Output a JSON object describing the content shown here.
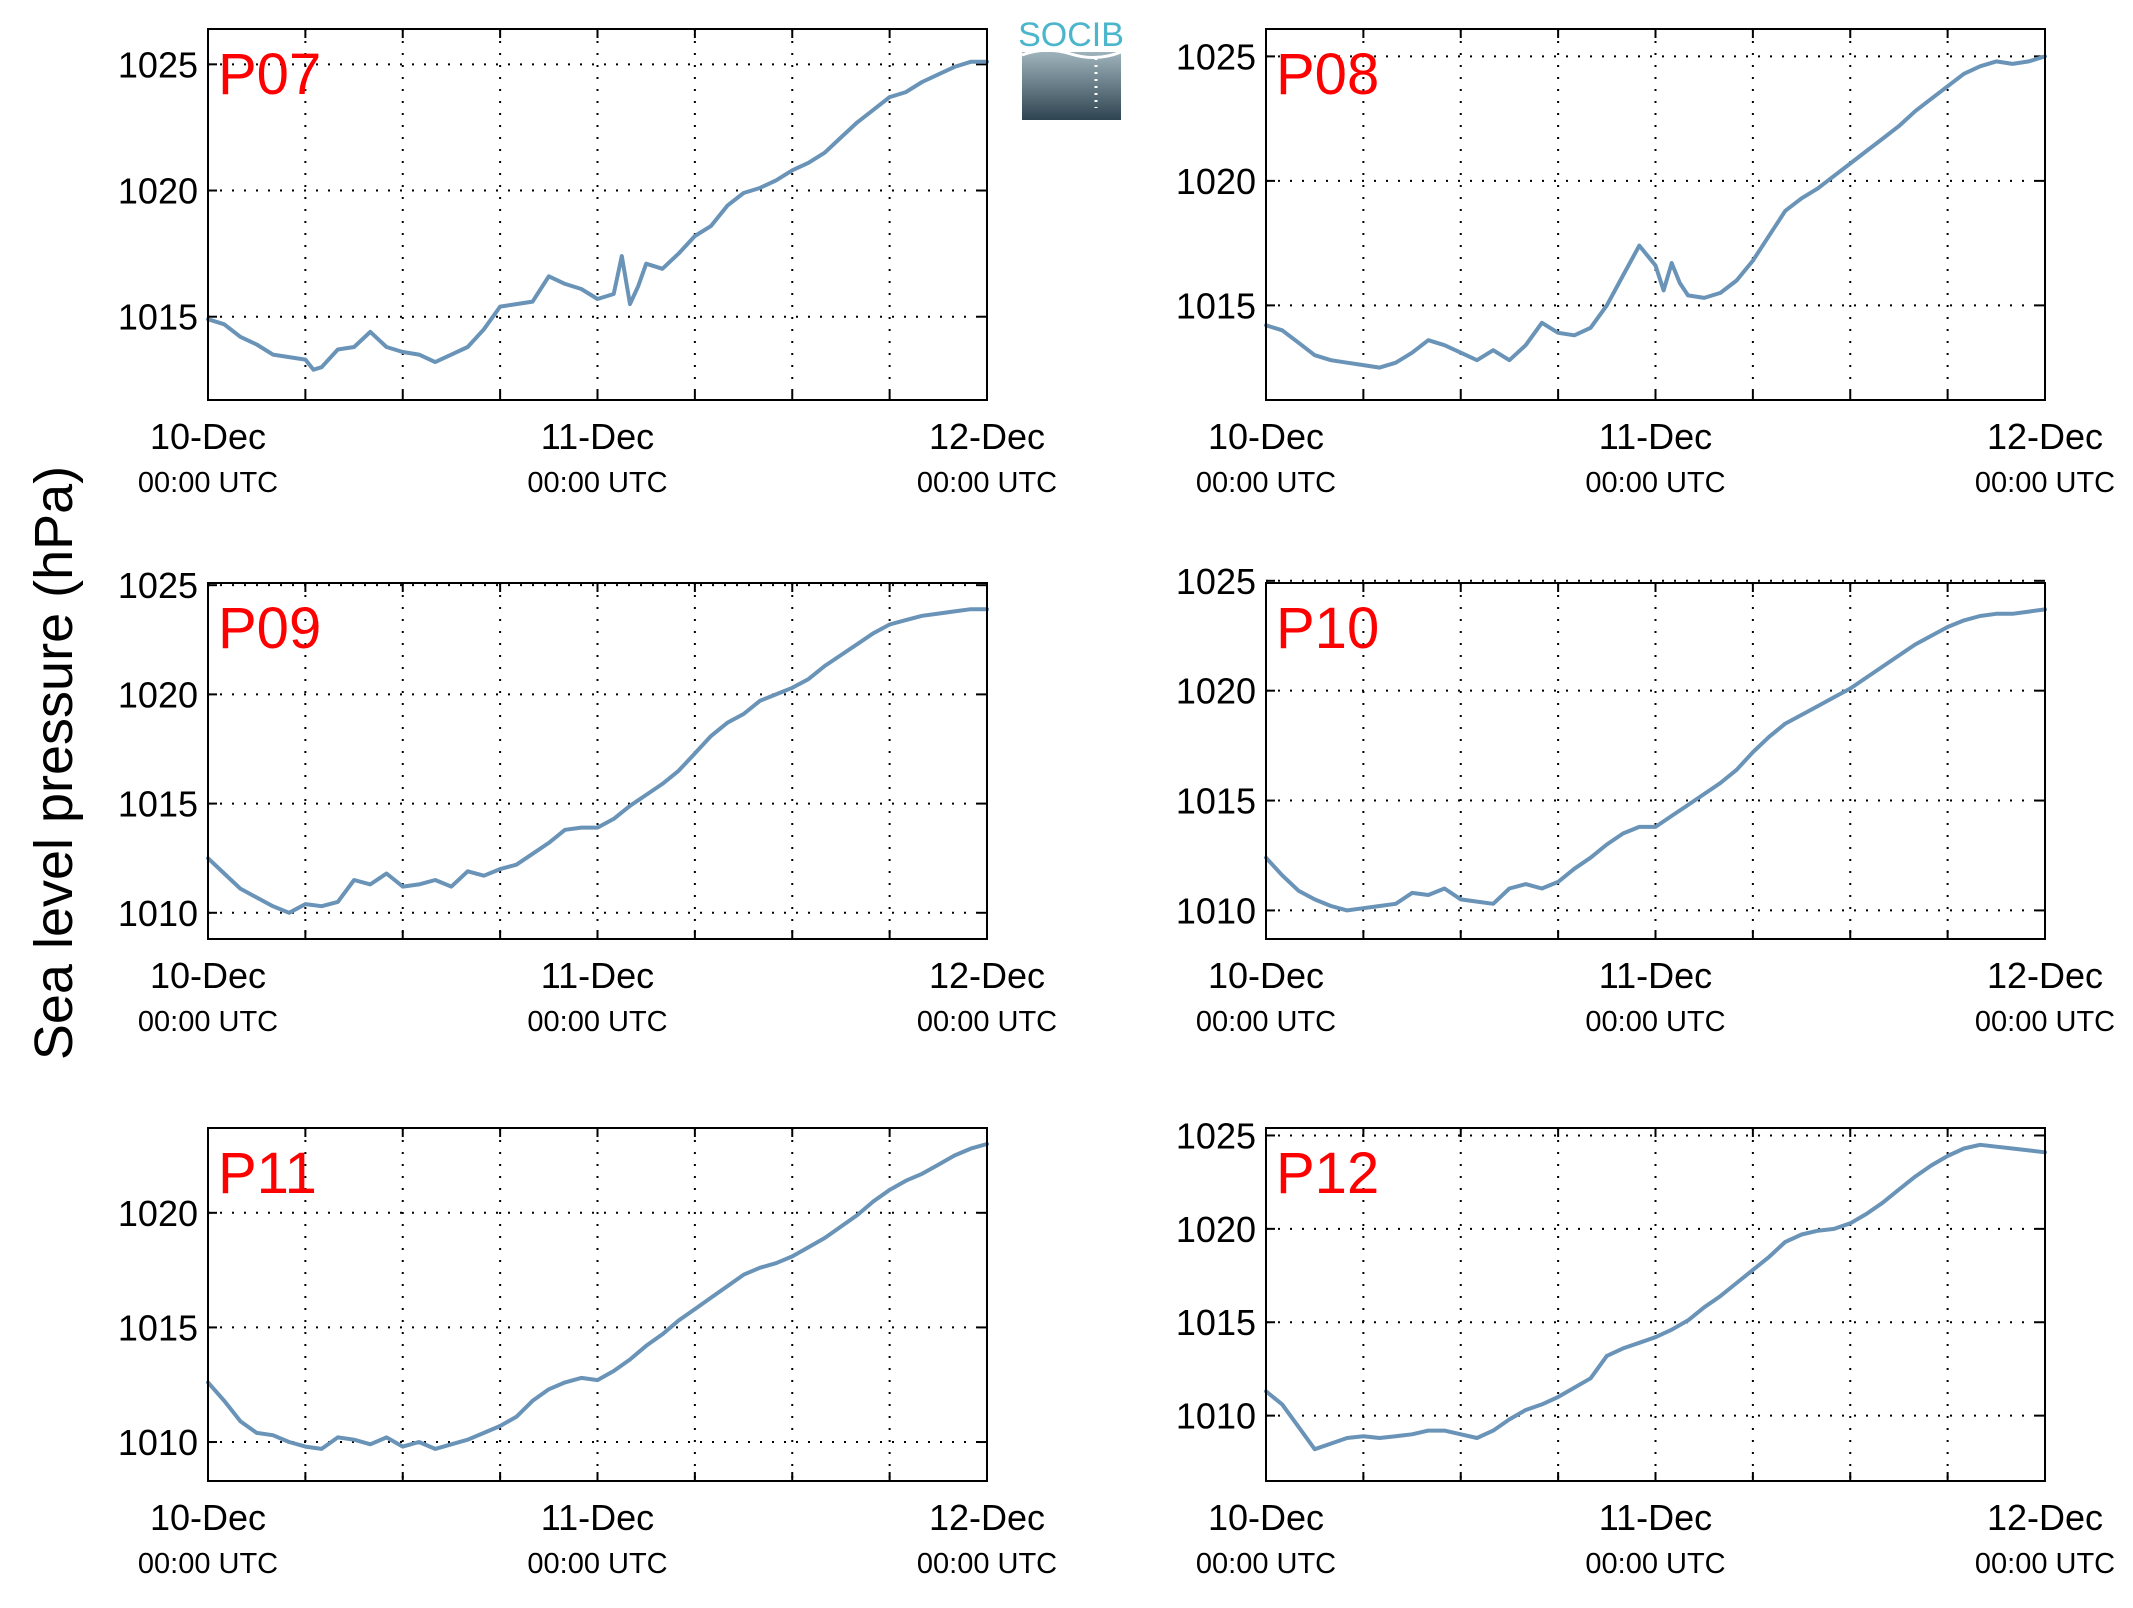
{
  "ylabel": "Sea level pressure (hPa)",
  "logo": {
    "text": "SOCIB",
    "colors": {
      "text": "#4bb5cc",
      "top": "#9fb3bc",
      "bottom": "#2e4450"
    }
  },
  "colors": {
    "line": "#6a93b8",
    "panel_label": "#ff0000",
    "axis": "#000000",
    "grid": "#000000"
  },
  "x_ticks": [
    {
      "date": "10-Dec",
      "time": "00:00 UTC"
    },
    {
      "date": "11-Dec",
      "time": "00:00 UTC"
    },
    {
      "date": "12-Dec",
      "time": "00:00 UTC"
    }
  ],
  "chart_data": [
    {
      "type": "line",
      "label": "P07",
      "x_unit": "hours since 10-Dec 00:00 UTC",
      "xlim": [
        0,
        48
      ],
      "ylim": [
        1011.7,
        1026.4
      ],
      "yticks": [
        1015,
        1020,
        1025
      ],
      "grid": true,
      "series": [
        {
          "x": [
            0,
            1,
            2,
            3,
            4,
            5,
            6,
            6.5,
            7,
            8,
            9,
            10,
            11,
            12,
            13,
            14,
            15,
            16,
            17,
            18,
            19,
            20,
            21,
            22,
            23,
            24,
            25,
            25.5,
            26,
            26.5,
            27,
            28,
            29,
            30,
            31,
            32,
            33,
            34,
            35,
            36,
            37,
            38,
            39,
            40,
            41,
            42,
            43,
            44,
            45,
            46,
            47,
            48
          ],
          "y": [
            1014.9,
            1014.7,
            1014.2,
            1013.9,
            1013.5,
            1013.4,
            1013.3,
            1012.9,
            1013.0,
            1013.7,
            1013.8,
            1014.4,
            1013.8,
            1013.6,
            1013.5,
            1013.2,
            1013.5,
            1013.8,
            1014.5,
            1015.4,
            1015.5,
            1015.6,
            1016.6,
            1016.3,
            1016.1,
            1015.7,
            1015.9,
            1017.4,
            1015.5,
            1016.2,
            1017.1,
            1016.9,
            1017.5,
            1018.2,
            1018.6,
            1019.4,
            1019.9,
            1020.1,
            1020.4,
            1020.8,
            1021.1,
            1021.5,
            1022.1,
            1022.7,
            1023.2,
            1023.7,
            1023.9,
            1024.3,
            1024.6,
            1024.9,
            1025.1,
            1025.1
          ]
        }
      ]
    },
    {
      "type": "line",
      "label": "P08",
      "x_unit": "hours since 10-Dec 00:00 UTC",
      "xlim": [
        0,
        48
      ],
      "ylim": [
        1011.2,
        1026.1
      ],
      "yticks": [
        1015,
        1020,
        1025
      ],
      "grid": true,
      "series": [
        {
          "x": [
            0,
            1,
            2,
            3,
            4,
            5,
            6,
            7,
            8,
            9,
            10,
            11,
            12,
            13,
            14,
            15,
            16,
            17,
            18,
            19,
            20,
            21,
            22,
            23,
            24,
            24.5,
            25,
            25.5,
            26,
            27,
            28,
            29,
            30,
            31,
            32,
            33,
            34,
            35,
            36,
            37,
            38,
            39,
            40,
            41,
            42,
            43,
            44,
            45,
            46,
            47,
            48
          ],
          "y": [
            1014.2,
            1014.0,
            1013.5,
            1013.0,
            1012.8,
            1012.7,
            1012.6,
            1012.5,
            1012.7,
            1013.1,
            1013.6,
            1013.4,
            1013.1,
            1012.8,
            1013.2,
            1012.8,
            1013.4,
            1014.3,
            1013.9,
            1013.8,
            1014.1,
            1015.0,
            1016.2,
            1017.4,
            1016.6,
            1015.6,
            1016.7,
            1015.9,
            1015.4,
            1015.3,
            1015.5,
            1016.0,
            1016.8,
            1017.8,
            1018.8,
            1019.3,
            1019.7,
            1020.2,
            1020.7,
            1021.2,
            1021.7,
            1022.2,
            1022.8,
            1023.3,
            1023.8,
            1024.3,
            1024.6,
            1024.8,
            1024.7,
            1024.8,
            1025.0
          ]
        }
      ]
    },
    {
      "type": "line",
      "label": "P09",
      "x_unit": "hours since 10-Dec 00:00 UTC",
      "xlim": [
        0,
        48
      ],
      "ylim": [
        1008.8,
        1025.1
      ],
      "yticks": [
        1010,
        1015,
        1020,
        1025
      ],
      "grid": true,
      "series": [
        {
          "x": [
            0,
            1,
            2,
            3,
            4,
            5,
            6,
            7,
            8,
            9,
            10,
            11,
            12,
            13,
            14,
            15,
            16,
            17,
            18,
            19,
            20,
            21,
            22,
            23,
            24,
            25,
            26,
            27,
            28,
            29,
            30,
            31,
            32,
            33,
            34,
            35,
            36,
            37,
            38,
            39,
            40,
            41,
            42,
            43,
            44,
            45,
            46,
            47,
            48
          ],
          "y": [
            1012.5,
            1011.8,
            1011.1,
            1010.7,
            1010.3,
            1010.0,
            1010.4,
            1010.3,
            1010.5,
            1011.5,
            1011.3,
            1011.8,
            1011.2,
            1011.3,
            1011.5,
            1011.2,
            1011.9,
            1011.7,
            1012.0,
            1012.2,
            1012.7,
            1013.2,
            1013.8,
            1013.9,
            1013.9,
            1014.3,
            1014.9,
            1015.4,
            1015.9,
            1016.5,
            1017.3,
            1018.1,
            1018.7,
            1019.1,
            1019.7,
            1020.0,
            1020.3,
            1020.7,
            1021.3,
            1021.8,
            1022.3,
            1022.8,
            1023.2,
            1023.4,
            1023.6,
            1023.7,
            1023.8,
            1023.9,
            1023.9
          ]
        }
      ]
    },
    {
      "type": "line",
      "label": "P10",
      "x_unit": "hours since 10-Dec 00:00 UTC",
      "xlim": [
        0,
        48
      ],
      "ylim": [
        1008.7,
        1024.9
      ],
      "yticks": [
        1010,
        1015,
        1020,
        1025
      ],
      "grid": true,
      "series": [
        {
          "x": [
            0,
            1,
            2,
            3,
            4,
            5,
            6,
            7,
            8,
            9,
            10,
            11,
            12,
            13,
            14,
            15,
            16,
            17,
            18,
            19,
            20,
            21,
            22,
            23,
            24,
            25,
            26,
            27,
            28,
            29,
            30,
            31,
            32,
            33,
            34,
            35,
            36,
            37,
            38,
            39,
            40,
            41,
            42,
            43,
            44,
            45,
            46,
            47,
            48
          ],
          "y": [
            1012.4,
            1011.6,
            1010.9,
            1010.5,
            1010.2,
            1010.0,
            1010.1,
            1010.2,
            1010.3,
            1010.8,
            1010.7,
            1011.0,
            1010.5,
            1010.4,
            1010.3,
            1011.0,
            1011.2,
            1011.0,
            1011.3,
            1011.9,
            1012.4,
            1013.0,
            1013.5,
            1013.8,
            1013.8,
            1014.3,
            1014.8,
            1015.3,
            1015.8,
            1016.4,
            1017.2,
            1017.9,
            1018.5,
            1018.9,
            1019.3,
            1019.7,
            1020.1,
            1020.6,
            1021.1,
            1021.6,
            1022.1,
            1022.5,
            1022.9,
            1023.2,
            1023.4,
            1023.5,
            1023.5,
            1023.6,
            1023.7
          ]
        }
      ]
    },
    {
      "type": "line",
      "label": "P11",
      "x_unit": "hours since 10-Dec 00:00 UTC",
      "xlim": [
        0,
        48
      ],
      "ylim": [
        1008.3,
        1023.7
      ],
      "yticks": [
        1010,
        1015,
        1020
      ],
      "grid": true,
      "series": [
        {
          "x": [
            0,
            1,
            2,
            3,
            4,
            5,
            6,
            7,
            8,
            9,
            10,
            11,
            12,
            13,
            14,
            15,
            16,
            17,
            18,
            19,
            20,
            21,
            22,
            23,
            24,
            25,
            26,
            27,
            28,
            29,
            30,
            31,
            32,
            33,
            34,
            35,
            36,
            37,
            38,
            39,
            40,
            41,
            42,
            43,
            44,
            45,
            46,
            47,
            48
          ],
          "y": [
            1012.6,
            1011.8,
            1010.9,
            1010.4,
            1010.3,
            1010.0,
            1009.8,
            1009.7,
            1010.2,
            1010.1,
            1009.9,
            1010.2,
            1009.8,
            1010.0,
            1009.7,
            1009.9,
            1010.1,
            1010.4,
            1010.7,
            1011.1,
            1011.8,
            1012.3,
            1012.6,
            1012.8,
            1012.7,
            1013.1,
            1013.6,
            1014.2,
            1014.7,
            1015.3,
            1015.8,
            1016.3,
            1016.8,
            1017.3,
            1017.6,
            1017.8,
            1018.1,
            1018.5,
            1018.9,
            1019.4,
            1019.9,
            1020.5,
            1021.0,
            1021.4,
            1021.7,
            1022.1,
            1022.5,
            1022.8,
            1023.0
          ]
        }
      ]
    },
    {
      "type": "line",
      "label": "P12",
      "x_unit": "hours since 10-Dec 00:00 UTC",
      "xlim": [
        0,
        48
      ],
      "ylim": [
        1006.5,
        1025.4
      ],
      "yticks": [
        1010,
        1015,
        1020,
        1025
      ],
      "grid": true,
      "series": [
        {
          "x": [
            0,
            1,
            2,
            3,
            4,
            5,
            6,
            7,
            8,
            9,
            10,
            11,
            12,
            13,
            14,
            15,
            16,
            17,
            18,
            19,
            20,
            21,
            22,
            23,
            24,
            25,
            26,
            27,
            28,
            29,
            30,
            31,
            32,
            33,
            34,
            35,
            36,
            37,
            38,
            39,
            40,
            41,
            42,
            43,
            44,
            45,
            46,
            47,
            48
          ],
          "y": [
            1011.3,
            1010.6,
            1009.4,
            1008.2,
            1008.5,
            1008.8,
            1008.9,
            1008.8,
            1008.9,
            1009.0,
            1009.2,
            1009.2,
            1009.0,
            1008.8,
            1009.2,
            1009.8,
            1010.3,
            1010.6,
            1011.0,
            1011.5,
            1012.0,
            1013.2,
            1013.6,
            1013.9,
            1014.2,
            1014.6,
            1015.1,
            1015.8,
            1016.4,
            1017.1,
            1017.8,
            1018.5,
            1019.3,
            1019.7,
            1019.9,
            1020.0,
            1020.3,
            1020.8,
            1021.4,
            1022.1,
            1022.8,
            1023.4,
            1023.9,
            1024.3,
            1024.5,
            1024.4,
            1024.3,
            1024.2,
            1024.1
          ]
        }
      ]
    }
  ]
}
